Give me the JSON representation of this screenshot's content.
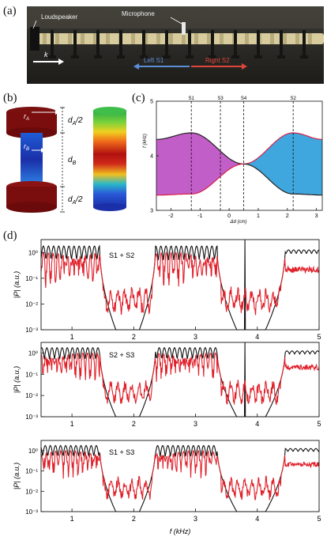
{
  "panels": {
    "a": "(a)",
    "b": "(b)",
    "c": "(c)",
    "d": "(d)"
  },
  "photo": {
    "labels": {
      "loudspeaker": "Loudspeaker",
      "microphone": "Microphone",
      "k": "k",
      "left": "Left S1",
      "right": "Right S2"
    },
    "colors": {
      "left": "#5a8fd6",
      "right": "#e0453a"
    }
  },
  "schematic": {
    "labels": {
      "rA": "r",
      "rA_sub": "A",
      "rB": "r",
      "rB_sub": "B",
      "dA_top": "d",
      "dA_top_sub": "A",
      "dA_top_tail": "/2",
      "dB": "d",
      "dB_sub": "B",
      "dA_bot": "d",
      "dA_bot_sub": "A",
      "dA_bot_tail": "/2"
    }
  },
  "chart_data": [
    {
      "type": "area",
      "panel": "c",
      "xlabel": "Δd (cm)",
      "ylabel": "f (kHz)",
      "xlim": [
        -2.5,
        3.2
      ],
      "ylim": [
        3,
        5
      ],
      "xticks": [
        "-2",
        "-1",
        "0",
        "1",
        "2",
        "3"
      ],
      "yticks": [
        "3",
        "4",
        "5"
      ],
      "markers": [
        {
          "label": "S1",
          "x": -1.3
        },
        {
          "label": "S3",
          "x": -0.3
        },
        {
          "label": "S4",
          "x": 0.5
        },
        {
          "label": "S2",
          "x": 2.2
        }
      ],
      "crossing": {
        "x": 0.5,
        "f": 3.85
      },
      "series": [
        {
          "x": [
            -2.5,
            -1.3,
            0.5,
            2.2,
            3.2
          ],
          "values": [
            4.3,
            4.42,
            3.85,
            4.42,
            4.3
          ]
        },
        {
          "x": [
            -2.5,
            -1.3,
            0.5,
            2.2,
            3.2
          ],
          "values": [
            3.28,
            3.3,
            3.85,
            3.3,
            3.28
          ]
        }
      ],
      "colors": {
        "left_gap": "#c25ec8",
        "right_gap": "#3fa7de",
        "upper_edge_left": "#222222",
        "upper_edge_right": "#d9204a",
        "lower_edge_left": "#d9204a",
        "lower_edge_right": "#222222"
      }
    },
    {
      "type": "line",
      "panel": "d1",
      "annotation": "S1 + S2",
      "xlabel": "",
      "ylabel": "|P| (a.u.)",
      "xlim": [
        0.5,
        5
      ],
      "ylim_log10": [
        -3,
        0.5
      ],
      "xticks": [
        "1",
        "2",
        "3",
        "4",
        "5"
      ],
      "yticks": [
        "10⁰",
        "10⁻¹",
        "10⁻²",
        "10⁻³"
      ],
      "pass_bands": [
        [
          0.5,
          1.45
        ],
        [
          2.35,
          3.35
        ],
        [
          4.45,
          5.0
        ]
      ],
      "stop_bands": [
        [
          1.45,
          2.35
        ],
        [
          3.35,
          4.45
        ]
      ],
      "spike_f": 3.8,
      "colors": {
        "theory": "#111111",
        "experiment": "#e0202a"
      }
    },
    {
      "type": "line",
      "panel": "d2",
      "annotation": "S2 + S3",
      "xlabel": "",
      "ylabel": "|P| (a.u.)",
      "xlim": [
        0.5,
        5
      ],
      "ylim_log10": [
        -3,
        0.5
      ],
      "xticks": [
        "1",
        "2",
        "3",
        "4",
        "5"
      ],
      "yticks": [
        "10⁰",
        "10⁻¹",
        "10⁻²",
        "10⁻³"
      ],
      "pass_bands": [
        [
          0.5,
          1.45
        ],
        [
          2.35,
          3.35
        ],
        [
          4.45,
          5.0
        ]
      ],
      "stop_bands": [
        [
          1.45,
          2.35
        ],
        [
          3.35,
          4.45
        ]
      ],
      "spike_f": 3.8,
      "colors": {
        "theory": "#111111",
        "experiment": "#e0202a"
      }
    },
    {
      "type": "line",
      "panel": "d3",
      "annotation": "S1 + S3",
      "xlabel": "f (kHz)",
      "ylabel": "|P| (a.u.)",
      "xlim": [
        0.5,
        5
      ],
      "ylim_log10": [
        -3,
        0.5
      ],
      "xticks": [
        "1",
        "2",
        "3",
        "4",
        "5"
      ],
      "yticks": [
        "10⁰",
        "10⁻¹",
        "10⁻²",
        "10⁻³"
      ],
      "pass_bands": [
        [
          0.5,
          1.45
        ],
        [
          2.35,
          3.35
        ],
        [
          4.45,
          5.0
        ]
      ],
      "stop_bands": [
        [
          1.45,
          2.35
        ],
        [
          3.35,
          4.45
        ]
      ],
      "spike_f": null,
      "colors": {
        "theory": "#111111",
        "experiment": "#e0202a"
      }
    }
  ]
}
